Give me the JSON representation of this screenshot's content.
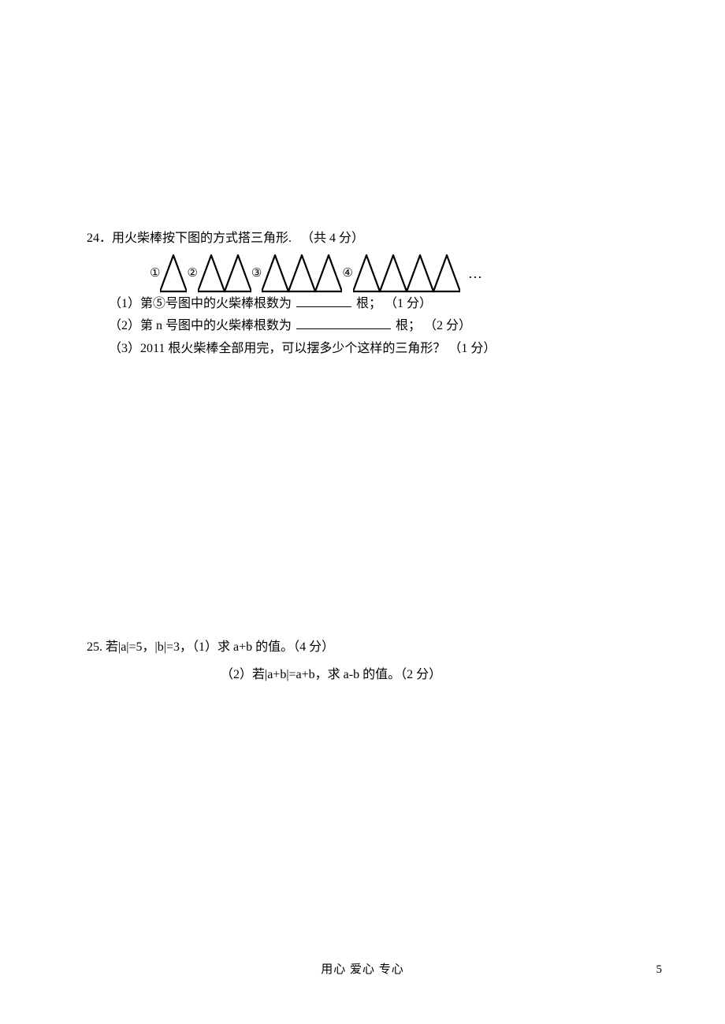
{
  "q24": {
    "number": "24．",
    "header": "用火柴棒按下图的方式搭三角形.",
    "points_total": "（共 4 分）",
    "figure": {
      "labels": [
        "①",
        "②",
        "③",
        "④"
      ],
      "ellipsis": "…",
      "triangle_counts": [
        1,
        2,
        3,
        4
      ],
      "unit_width": 34,
      "unit_height": 50,
      "stroke_color": "#000000",
      "stroke_width": 2.2
    },
    "sub1": {
      "prefix": "（1）第⑤号图中的火柴棒根数为",
      "suffix": "根；",
      "points": "（1 分）"
    },
    "sub2": {
      "prefix": "（2）第 n 号图中的火柴棒根数为",
      "suffix": "根；",
      "points": "（2 分）"
    },
    "sub3": {
      "text": "（3）2011 根火柴棒全部用完，可以摆多少个这样的三角形？",
      "points": "（1 分）"
    }
  },
  "q25": {
    "number": "25.",
    "header": " 若|a|=5，|b|=3，（1）求 a+b 的值。（4 分）",
    "sub2": "（2）若|a+b|=a+b，求 a-b 的值。（2 分）"
  },
  "footer": "用心   爱心   专心",
  "page_number": "5"
}
